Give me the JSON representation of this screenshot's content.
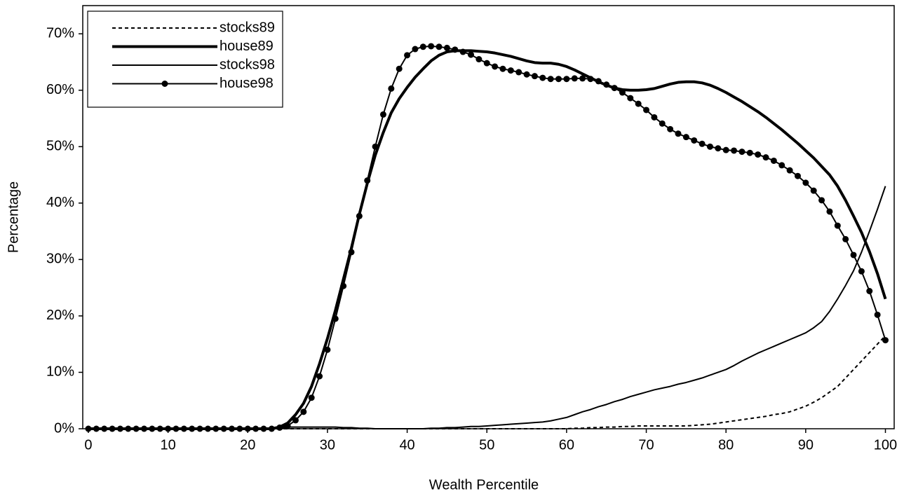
{
  "chart_data": {
    "type": "line",
    "x_label": "Wealth Percentile",
    "y_label": "Percentage",
    "x": [
      0,
      1,
      2,
      3,
      4,
      5,
      6,
      7,
      8,
      9,
      10,
      11,
      12,
      13,
      14,
      15,
      16,
      17,
      18,
      19,
      20,
      21,
      22,
      23,
      24,
      25,
      26,
      27,
      28,
      29,
      30,
      31,
      32,
      33,
      34,
      35,
      36,
      37,
      38,
      39,
      40,
      41,
      42,
      43,
      44,
      45,
      46,
      47,
      48,
      49,
      50,
      51,
      52,
      53,
      54,
      55,
      56,
      57,
      58,
      59,
      60,
      61,
      62,
      63,
      64,
      65,
      66,
      67,
      68,
      69,
      70,
      71,
      72,
      73,
      74,
      75,
      76,
      77,
      78,
      79,
      80,
      81,
      82,
      83,
      84,
      85,
      86,
      87,
      88,
      89,
      90,
      91,
      92,
      93,
      94,
      95,
      96,
      97,
      98,
      99,
      100
    ],
    "series": [
      {
        "name": "stocks89",
        "color": "#000000",
        "line_style": "dashed",
        "line_width": 2,
        "values": [
          0,
          0,
          0,
          0,
          0,
          0,
          0,
          0,
          0,
          0,
          0,
          0,
          0,
          0,
          0,
          0,
          0,
          0,
          0,
          0,
          0,
          0,
          0,
          0,
          0,
          0,
          0,
          0,
          0,
          0,
          0,
          0,
          0,
          0,
          0,
          0,
          0,
          0,
          0,
          0,
          0,
          0,
          0,
          0,
          0,
          0,
          0,
          0,
          0,
          0,
          0,
          0,
          0,
          0,
          0,
          0,
          0,
          0,
          0,
          0,
          0,
          0.1,
          0.1,
          0.2,
          0.2,
          0.3,
          0.3,
          0.4,
          0.4,
          0.5,
          0.5,
          0.5,
          0.5,
          0.5,
          0.5,
          0.5,
          0.6,
          0.7,
          0.8,
          1,
          1.2,
          1.4,
          1.6,
          1.8,
          2,
          2.2,
          2.5,
          2.7,
          3,
          3.5,
          4,
          4.7,
          5.5,
          6.5,
          7.5,
          9,
          10.5,
          12,
          13.5,
          15,
          16.5
        ]
      },
      {
        "name": "house89",
        "color": "#000000",
        "line_style": "solid",
        "line_width": 4,
        "values": [
          0,
          0,
          0,
          0,
          0,
          0,
          0,
          0,
          0,
          0,
          0,
          0,
          0,
          0,
          0,
          0,
          0,
          0,
          0,
          0,
          0,
          0,
          0,
          0,
          0.3,
          1,
          2.5,
          4.5,
          7.5,
          11.5,
          16,
          21,
          26.5,
          32,
          38,
          43.5,
          48.5,
          52.5,
          56,
          58.5,
          60.5,
          62.3,
          63.8,
          65.2,
          66.2,
          66.8,
          67,
          67,
          67,
          66.9,
          66.8,
          66.6,
          66.3,
          66,
          65.6,
          65.2,
          64.9,
          64.8,
          64.8,
          64.6,
          64.2,
          63.6,
          62.9,
          62.2,
          61.5,
          60.9,
          60.4,
          60.1,
          60,
          60,
          60.1,
          60.3,
          60.7,
          61.1,
          61.4,
          61.5,
          61.5,
          61.3,
          60.9,
          60.3,
          59.6,
          58.8,
          58,
          57.1,
          56.2,
          55.2,
          54.1,
          53,
          51.8,
          50.6,
          49.3,
          48,
          46.5,
          45,
          43,
          40.5,
          37.7,
          34.8,
          31.4,
          27.5,
          23
        ]
      },
      {
        "name": "stocks98",
        "color": "#000000",
        "line_style": "solid",
        "line_width": 2,
        "values": [
          0,
          0,
          0,
          0,
          0,
          0,
          0,
          0,
          0,
          0,
          0,
          0,
          0,
          0,
          0,
          0,
          0,
          0,
          0,
          0,
          0,
          0,
          0,
          0,
          0,
          0.3,
          0.3,
          0.3,
          0.3,
          0.3,
          0.3,
          0.3,
          0.2,
          0.2,
          0.1,
          0.1,
          0,
          0,
          0,
          0,
          0,
          0,
          0,
          0.1,
          0.1,
          0.2,
          0.2,
          0.3,
          0.4,
          0.4,
          0.5,
          0.6,
          0.7,
          0.8,
          0.9,
          1,
          1.1,
          1.2,
          1.4,
          1.7,
          2,
          2.5,
          3,
          3.4,
          3.9,
          4.3,
          4.8,
          5.2,
          5.7,
          6.1,
          6.5,
          6.9,
          7.2,
          7.5,
          7.9,
          8.2,
          8.6,
          9,
          9.5,
          10,
          10.5,
          11.2,
          12,
          12.7,
          13.4,
          14,
          14.6,
          15.2,
          15.8,
          16.4,
          17,
          17.9,
          19,
          20.8,
          23,
          25.4,
          28,
          31.3,
          35,
          38.9,
          43
        ]
      },
      {
        "name": "house98",
        "color": "#000000",
        "line_style": "solid",
        "line_width": 2,
        "marker": "circle",
        "values": [
          0,
          0,
          0,
          0,
          0,
          0,
          0,
          0,
          0,
          0,
          0,
          0,
          0,
          0,
          0,
          0,
          0,
          0,
          0,
          0,
          0,
          0,
          0,
          0,
          0.2,
          0.5,
          1.5,
          3,
          5.5,
          9.3,
          14,
          19.5,
          25.3,
          31.3,
          37.7,
          44,
          50,
          55.7,
          60.3,
          63.8,
          66.2,
          67.3,
          67.7,
          67.8,
          67.7,
          67.5,
          67.2,
          66.8,
          66.3,
          65.5,
          64.8,
          64.2,
          63.8,
          63.5,
          63.2,
          62.8,
          62.5,
          62.2,
          62,
          62,
          62,
          62.1,
          62.1,
          62,
          61.6,
          61,
          60.4,
          59.6,
          58.6,
          57.6,
          56.5,
          55.2,
          54.1,
          53.1,
          52.3,
          51.7,
          51.1,
          50.5,
          50,
          49.7,
          49.4,
          49.3,
          49.1,
          48.9,
          48.6,
          48.1,
          47.5,
          46.7,
          45.8,
          44.8,
          43.6,
          42.2,
          40.5,
          38.5,
          36,
          33.6,
          30.8,
          27.9,
          24.4,
          20.2,
          15.7
        ]
      }
    ],
    "xlim": [
      -0.7,
      101.1
    ],
    "xticks": [
      0,
      10,
      20,
      30,
      40,
      50,
      60,
      70,
      80,
      90,
      100
    ],
    "ylim": [
      0,
      75
    ],
    "yticks": [
      {
        "value": 0,
        "label": "0%"
      },
      {
        "value": 10,
        "label": "10%"
      },
      {
        "value": 20,
        "label": "20%"
      },
      {
        "value": 30,
        "label": "30%"
      },
      {
        "value": 40,
        "label": "40%"
      },
      {
        "value": 50,
        "label": "50%"
      },
      {
        "value": 60,
        "label": "60%"
      },
      {
        "value": 70,
        "label": "70%"
      }
    ],
    "grid": false,
    "legend": "upper left"
  }
}
